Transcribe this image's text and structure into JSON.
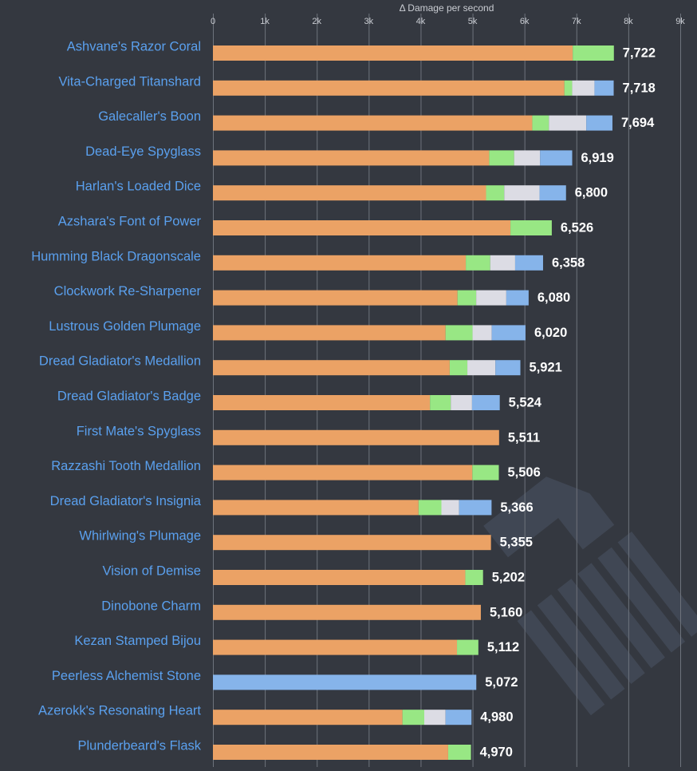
{
  "chart_data": {
    "type": "bar",
    "orientation": "horizontal",
    "stacked": true,
    "xlabel": "Δ Damage per second",
    "xlim": [
      0,
      9000
    ],
    "x_ticks": [
      0,
      1000,
      2000,
      3000,
      4000,
      5000,
      6000,
      7000,
      8000,
      9000
    ],
    "x_tick_labels": [
      "0",
      "1k",
      "2k",
      "3k",
      "4k",
      "5k",
      "6k",
      "7k",
      "8k",
      "9k"
    ],
    "grid": true,
    "series_colors": [
      "#eba265",
      "#98e784",
      "#dcdce4",
      "#86b4ea"
    ],
    "categories": [
      "Ashvane's Razor Coral",
      "Vita-Charged Titanshard",
      "Galecaller's Boon",
      "Dead-Eye Spyglass",
      "Harlan's Loaded Dice",
      "Azshara's Font of Power",
      "Humming Black Dragonscale",
      "Clockwork Re-Sharpener",
      "Lustrous Golden Plumage",
      "Dread Gladiator's Medallion",
      "Dread Gladiator's Badge",
      "First Mate's Spyglass",
      "Razzashi Tooth Medallion",
      "Dread Gladiator's Insignia",
      "Whirlwing's Plumage",
      "Vision of Demise",
      "Dinobone Charm",
      "Kezan Stamped Bijou",
      "Peerless Alchemist Stone",
      "Azerokk's Resonating Heart",
      "Plunderbeard's Flask"
    ],
    "stacks": [
      [
        6929,
        793,
        0,
        0
      ],
      [
        6768,
        150,
        430,
        370
      ],
      [
        6150,
        320,
        720,
        504
      ],
      [
        5320,
        480,
        500,
        619
      ],
      [
        5260,
        350,
        680,
        510
      ],
      [
        5730,
        796,
        0,
        0
      ],
      [
        4870,
        470,
        480,
        538
      ],
      [
        4710,
        360,
        580,
        430
      ],
      [
        4480,
        520,
        370,
        650
      ],
      [
        4560,
        340,
        540,
        481
      ],
      [
        4180,
        400,
        410,
        534
      ],
      [
        5511,
        0,
        0,
        0
      ],
      [
        4996,
        510,
        0,
        0
      ],
      [
        3960,
        440,
        340,
        626
      ],
      [
        5355,
        0,
        0,
        0
      ],
      [
        4860,
        342,
        0,
        0
      ],
      [
        5160,
        0,
        0,
        0
      ],
      [
        4700,
        412,
        0,
        0
      ],
      [
        0,
        0,
        0,
        5072
      ],
      [
        3650,
        420,
        410,
        500
      ],
      [
        4530,
        440,
        0,
        0
      ]
    ],
    "totals": [
      7722,
      7718,
      7694,
      6919,
      6800,
      6526,
      6358,
      6080,
      6020,
      5921,
      5524,
      5511,
      5506,
      5366,
      5355,
      5202,
      5160,
      5112,
      5072,
      4980,
      4970
    ],
    "total_labels": [
      "7,722",
      "7,718",
      "7,694",
      "6,919",
      "6,800",
      "6,526",
      "6,358",
      "6,080",
      "6,020",
      "5,921",
      "5,524",
      "5,511",
      "5,506",
      "5,366",
      "5,355",
      "5,202",
      "5,160",
      "5,112",
      "5,072",
      "4,980",
      "4,970"
    ]
  }
}
